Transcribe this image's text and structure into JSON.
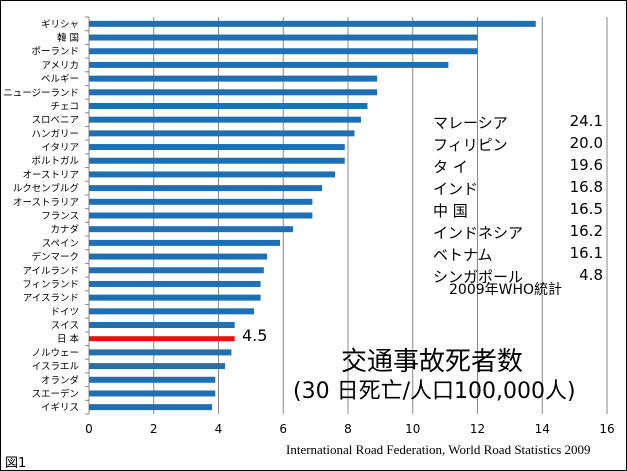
{
  "chart_data": {
    "type": "bar",
    "orientation": "horizontal",
    "title": "交通事故死者数",
    "subtitle": "(30 日死亡/人口100,000人)",
    "categories": [
      "ギリシャ",
      "韓 国",
      "ポーランド",
      "アメリカ",
      "ベルギー",
      "ニュージーランド",
      "チェコ",
      "スロベニア",
      "ハンガリー",
      "イタリア",
      "ポルトガル",
      "オーストリア",
      "ルクセンブルグ",
      "オーストラリア",
      "フランス",
      "カナダ",
      "スペイン",
      "デンマーク",
      "アイルランド",
      "フィンランド",
      "アイスランド",
      "ドイツ",
      "スイス",
      "日 本",
      "ノルウェー",
      "イスラエル",
      "オランダ",
      "スエーデン",
      "イギリス"
    ],
    "values": [
      13.8,
      12.0,
      12.0,
      11.1,
      8.9,
      8.9,
      8.6,
      8.4,
      8.2,
      7.9,
      7.9,
      7.6,
      7.2,
      6.9,
      6.9,
      6.3,
      5.9,
      5.5,
      5.4,
      5.3,
      5.3,
      5.1,
      4.5,
      4.5,
      4.4,
      4.2,
      3.9,
      3.9,
      3.8
    ],
    "highlight_index": 23,
    "highlight_label": "4.5",
    "xlim": [
      0,
      16
    ],
    "xticks": [
      "0",
      "2",
      "4",
      "6",
      "8",
      "10",
      "12",
      "14",
      "16"
    ],
    "grid": true,
    "colors": {
      "bar": "#1f6fb5",
      "highlight": "#e8120c",
      "grid": "#888888"
    }
  },
  "inset": {
    "rows": [
      {
        "name": "マレーシア",
        "value": "24.1"
      },
      {
        "name": "フィリピン",
        "value": "20.0"
      },
      {
        "name": "タ イ",
        "value": "19.6"
      },
      {
        "name": "インド",
        "value": "16.8"
      },
      {
        "name": "中 国",
        "value": "16.5"
      },
      {
        "name": "インドネシア",
        "value": "16.2"
      },
      {
        "name": "ベトナム",
        "value": "16.1"
      },
      {
        "name": "シンガポール",
        "value": "4.8"
      }
    ],
    "note": "2009年WHO統計"
  },
  "figure_label": "図1",
  "source": "International Road Federation, World Road Statistics 2009"
}
